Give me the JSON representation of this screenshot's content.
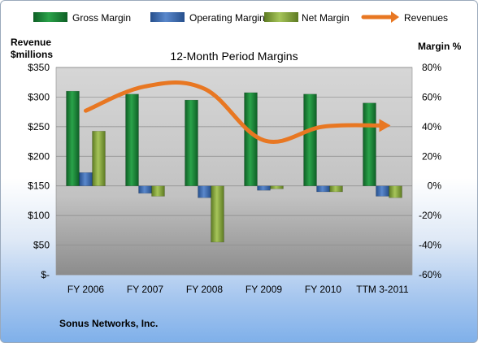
{
  "chart_data": {
    "type": "bar",
    "title": "12-Month Period Margins",
    "categories": [
      "FY 2006",
      "FY 2007",
      "FY 2008",
      "FY 2009",
      "FY 2010",
      "TTM 3-2011"
    ],
    "series": [
      {
        "name": "Gross Margin",
        "type": "bar",
        "axis": "right",
        "color": "#1e8a3a",
        "values": [
          64,
          62,
          58,
          63,
          62,
          56
        ]
      },
      {
        "name": "Operating Margin",
        "type": "bar",
        "axis": "right",
        "color": "#3f6fb5",
        "values": [
          9,
          -5,
          -8,
          -3,
          -4,
          -7
        ]
      },
      {
        "name": "Net Margin",
        "type": "bar",
        "axis": "right",
        "color": "#8fb043",
        "values": [
          37,
          -7,
          -38,
          -2,
          -4,
          -8
        ]
      },
      {
        "name": "Revenues",
        "type": "line",
        "axis": "left",
        "color": "#e87722",
        "values": [
          277,
          318,
          314,
          227,
          250,
          252
        ]
      }
    ],
    "y_left": {
      "label_line1": "Revenue",
      "label_line2": "$millions",
      "range": [
        0,
        350
      ],
      "ticks": [
        0,
        50,
        100,
        150,
        200,
        250,
        300,
        350
      ],
      "tick_labels": [
        "$-",
        "$50",
        "$100",
        "$150",
        "$200",
        "$250",
        "$300",
        "$350"
      ]
    },
    "y_right": {
      "label": "Margin %",
      "range": [
        -60,
        80
      ],
      "ticks": [
        -60,
        -40,
        -20,
        0,
        20,
        40,
        60,
        80
      ],
      "tick_labels": [
        "-60%",
        "-40%",
        "-20%",
        "0%",
        "20%",
        "40%",
        "60%",
        "80%"
      ]
    },
    "legend_position": "top",
    "grid": true,
    "footnote": "Sonus Networks, Inc."
  }
}
